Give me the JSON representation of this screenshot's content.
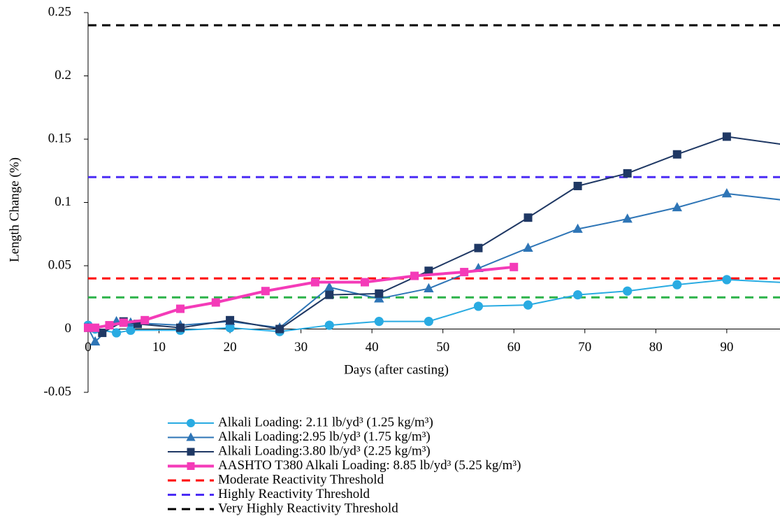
{
  "chart_data": {
    "type": "line",
    "xlabel": "Days (after casting)",
    "ylabel": "Length Change (%)",
    "xlim": [
      0,
      97.5
    ],
    "xticks": [
      0,
      10,
      20,
      30,
      40,
      50,
      60,
      70,
      80,
      90
    ],
    "ylim": [
      -0.05,
      0.25
    ],
    "yticks": [
      -0.05,
      0,
      0.05,
      0.1,
      0.15,
      0.2,
      0.25
    ],
    "series": [
      {
        "name": "Alkali Loading: 2.11 lb/yd³ (1.25 kg/m³)",
        "color": "#29abe2",
        "marker": "circle",
        "width": 2,
        "x": [
          0,
          1,
          4,
          6,
          13,
          20,
          27,
          34,
          41,
          48,
          55,
          62,
          69,
          76,
          83,
          90,
          104
        ],
        "values": [
          0.003,
          0.0,
          -0.003,
          -0.001,
          -0.001,
          0.001,
          -0.002,
          0.003,
          0.006,
          0.006,
          0.018,
          0.019,
          0.027,
          0.03,
          0.035,
          0.039,
          0.035
        ]
      },
      {
        "name": "Alkali Loading:2.95 lb/yd³ (1.75 kg/m³)",
        "color": "#2e75b6",
        "marker": "triangle",
        "width": 2,
        "x": [
          0,
          1,
          4,
          6,
          13,
          20,
          27,
          34,
          41,
          48,
          55,
          62,
          69,
          76,
          83,
          90,
          104
        ],
        "values": [
          0.001,
          -0.01,
          0.006,
          0.005,
          0.003,
          0.006,
          0.001,
          0.033,
          0.024,
          0.032,
          0.048,
          0.064,
          0.079,
          0.087,
          0.096,
          0.107,
          0.098
        ]
      },
      {
        "name": "Alkali Loading:3.80 lb/yd³ (2.25 kg/m³)",
        "color": "#1f3864",
        "marker": "square",
        "width": 2,
        "x": [
          0,
          2,
          5,
          7,
          13,
          20,
          27,
          34,
          41,
          48,
          55,
          62,
          69,
          76,
          83,
          90,
          104
        ],
        "values": [
          0.001,
          -0.003,
          0.006,
          0.004,
          0.001,
          0.007,
          0.0,
          0.027,
          0.028,
          0.046,
          0.064,
          0.088,
          0.113,
          0.123,
          0.138,
          0.152,
          0.141
        ]
      },
      {
        "name": "AASHTO T380  Alkali Loading: 8.85 lb/yd³ (5.25 kg/m³)",
        "color": "#f43bb8",
        "marker": "square",
        "width": 4,
        "x": [
          0,
          1,
          3,
          5,
          8,
          13,
          18,
          25,
          32,
          39,
          46,
          53,
          60
        ],
        "values": [
          0.001,
          0.001,
          0.003,
          0.005,
          0.007,
          0.016,
          0.021,
          0.03,
          0.037,
          0.037,
          0.042,
          0.045,
          0.049
        ]
      }
    ],
    "thresholds": [
      {
        "name": "Moderate Reactivity Threshold",
        "color": "#ff0000",
        "value": 0.04
      },
      {
        "name": "Highly Reactivity Threshold",
        "color": "#4b2df5",
        "value": 0.12
      },
      {
        "name": "Very Highly Reactivity Threshold",
        "color": "#000000",
        "value": 0.24
      },
      {
        "color": "#2db34a",
        "value": 0.025
      }
    ]
  }
}
